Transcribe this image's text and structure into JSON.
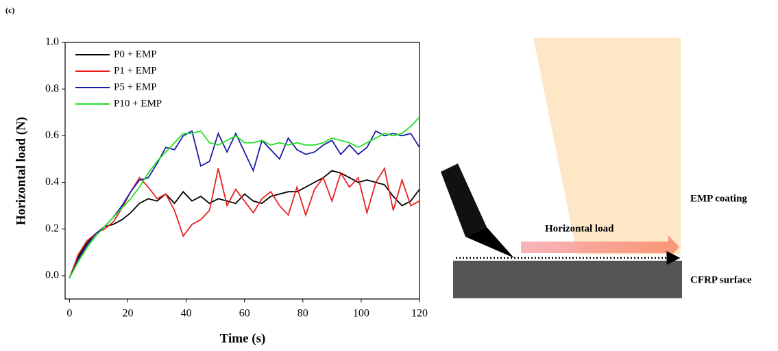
{
  "panel_label": "(c)",
  "chart_data": {
    "type": "line",
    "x_label": "Time (s)",
    "y_label": "Horizontal load (N)",
    "x": [
      0,
      3,
      6,
      9,
      12,
      15,
      18,
      21,
      24,
      27,
      30,
      33,
      36,
      39,
      42,
      45,
      48,
      51,
      54,
      57,
      60,
      63,
      66,
      69,
      72,
      75,
      78,
      81,
      84,
      87,
      90,
      93,
      96,
      99,
      102,
      105,
      108,
      111,
      114,
      117,
      120
    ],
    "series": [
      {
        "name": "P0 + EMP",
        "color": "#000000",
        "values": [
          -0.01,
          0.08,
          0.14,
          0.18,
          0.21,
          0.22,
          0.24,
          0.27,
          0.31,
          0.33,
          0.32,
          0.35,
          0.31,
          0.36,
          0.32,
          0.34,
          0.31,
          0.33,
          0.32,
          0.31,
          0.35,
          0.32,
          0.31,
          0.34,
          0.35,
          0.36,
          0.36,
          0.38,
          0.4,
          0.42,
          0.45,
          0.44,
          0.42,
          0.4,
          0.41,
          0.4,
          0.39,
          0.34,
          0.3,
          0.32,
          0.37
        ]
      },
      {
        "name": "P1 + EMP",
        "color": "#e8201c",
        "values": [
          -0.01,
          0.09,
          0.15,
          0.18,
          0.2,
          0.23,
          0.29,
          0.36,
          0.42,
          0.38,
          0.33,
          0.35,
          0.28,
          0.17,
          0.22,
          0.24,
          0.28,
          0.46,
          0.3,
          0.37,
          0.32,
          0.27,
          0.33,
          0.36,
          0.3,
          0.26,
          0.38,
          0.26,
          0.37,
          0.42,
          0.32,
          0.44,
          0.38,
          0.42,
          0.27,
          0.4,
          0.46,
          0.28,
          0.41,
          0.3,
          0.32
        ]
      },
      {
        "name": "P5 + EMP",
        "color": "#1a1aa8",
        "values": [
          -0.01,
          0.07,
          0.13,
          0.18,
          0.21,
          0.25,
          0.3,
          0.36,
          0.41,
          0.42,
          0.48,
          0.55,
          0.54,
          0.6,
          0.62,
          0.47,
          0.49,
          0.61,
          0.53,
          0.61,
          0.53,
          0.45,
          0.58,
          0.54,
          0.5,
          0.59,
          0.54,
          0.52,
          0.53,
          0.56,
          0.58,
          0.52,
          0.56,
          0.52,
          0.55,
          0.62,
          0.6,
          0.61,
          0.6,
          0.61,
          0.55
        ]
      },
      {
        "name": "P10 + EMP",
        "color": "#22e022",
        "values": [
          -0.01,
          0.06,
          0.12,
          0.17,
          0.21,
          0.25,
          0.29,
          0.33,
          0.38,
          0.44,
          0.49,
          0.53,
          0.57,
          0.61,
          0.61,
          0.62,
          0.57,
          0.56,
          0.58,
          0.6,
          0.57,
          0.57,
          0.58,
          0.56,
          0.57,
          0.56,
          0.57,
          0.56,
          0.56,
          0.57,
          0.59,
          0.58,
          0.57,
          0.55,
          0.57,
          0.59,
          0.61,
          0.6,
          0.61,
          0.64,
          0.68
        ]
      }
    ],
    "xlim": [
      -1.5,
      120
    ],
    "xticks": [
      0,
      20,
      40,
      60,
      80,
      100,
      120
    ],
    "ylim": [
      -0.1,
      1.0
    ],
    "yticks": [
      {
        "value": 0,
        "label": "0.0"
      },
      0.2,
      0.4,
      0.6,
      0.8,
      {
        "value": 1,
        "label": "1.0"
      }
    ],
    "legend": "upper-left"
  },
  "diagram": {
    "coating_label": "EMP coating",
    "load_label": "Horizontal load",
    "surface_label": "CFRP surface"
  }
}
